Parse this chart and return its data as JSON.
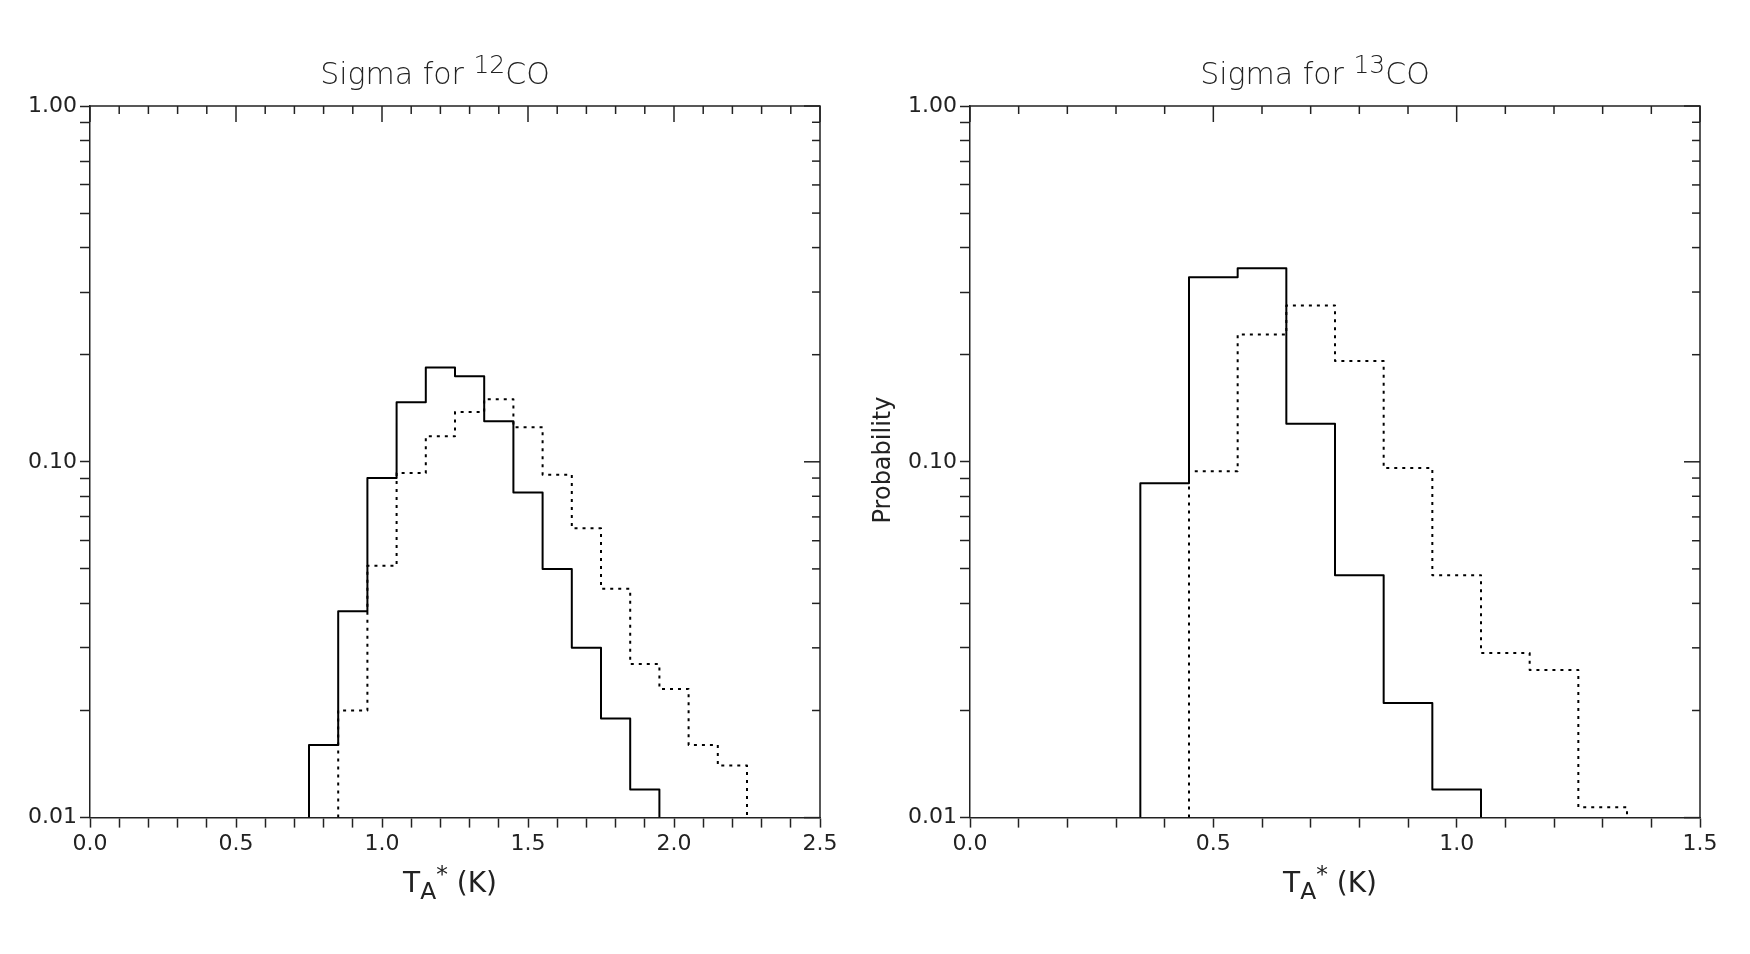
{
  "chart_data": [
    {
      "type": "step",
      "title": "Sigma for $^{12}$CO",
      "xlabel": "T$_{A}$$^{*}$ (K)",
      "log": "y",
      "xlim": [
        0,
        2.5
      ],
      "xticks": [
        {
          "value": 0,
          "label": "0.0"
        },
        {
          "value": 0.1,
          "label": null
        },
        {
          "value": 0.2,
          "label": null
        },
        {
          "value": 0.3,
          "label": null
        },
        {
          "value": 0.4,
          "label": null
        },
        {
          "value": 0.5,
          "label": "0.5"
        },
        {
          "value": 0.6,
          "label": null
        },
        {
          "value": 0.7,
          "label": null
        },
        {
          "value": 0.8,
          "label": null
        },
        {
          "value": 0.9,
          "label": null
        },
        {
          "value": 1,
          "label": "1.0"
        },
        {
          "value": 1.1,
          "label": null
        },
        {
          "value": 1.2,
          "label": null
        },
        {
          "value": 1.3,
          "label": null
        },
        {
          "value": 1.4,
          "label": null
        },
        {
          "value": 1.5,
          "label": "1.5"
        },
        {
          "value": 1.6,
          "label": null
        },
        {
          "value": 1.7,
          "label": null
        },
        {
          "value": 1.8,
          "label": null
        },
        {
          "value": 1.9,
          "label": null
        },
        {
          "value": 2,
          "label": "2.0"
        },
        {
          "value": 2.1,
          "label": null
        },
        {
          "value": 2.2,
          "label": null
        },
        {
          "value": 2.3,
          "label": null
        },
        {
          "value": 2.4,
          "label": null
        },
        {
          "value": 2.5,
          "label": "2.5"
        }
      ],
      "ylim": [
        0.01,
        1
      ],
      "yticks": [
        {
          "value": 0.01,
          "label": "0.01"
        },
        {
          "value": 0.02,
          "label": null
        },
        {
          "value": 0.03,
          "label": null
        },
        {
          "value": 0.04,
          "label": null
        },
        {
          "value": 0.05,
          "label": null
        },
        {
          "value": 0.06,
          "label": null
        },
        {
          "value": 0.07,
          "label": null
        },
        {
          "value": 0.08,
          "label": null
        },
        {
          "value": 0.09,
          "label": null
        },
        {
          "value": 0.1,
          "label": "0.10"
        },
        {
          "value": 0.2,
          "label": null
        },
        {
          "value": 0.3,
          "label": null
        },
        {
          "value": 0.4,
          "label": null
        },
        {
          "value": 0.5,
          "label": null
        },
        {
          "value": 0.6,
          "label": null
        },
        {
          "value": 0.7,
          "label": null
        },
        {
          "value": 0.8,
          "label": null
        },
        {
          "value": 0.9,
          "label": null
        },
        {
          "value": 1,
          "label": "1.00"
        }
      ],
      "series": [
        {
          "color": "#000000",
          "line_style": "solid",
          "x": [
            0.75,
            0.75,
            0.85,
            0.95,
            1.05,
            1.15,
            1.25,
            1.35,
            1.45,
            1.55,
            1.65,
            1.75,
            1.85,
            1.95
          ],
          "values": [
            0.01,
            0.016,
            0.038,
            0.09,
            0.147,
            0.184,
            0.174,
            0.13,
            0.082,
            0.05,
            0.03,
            0.019,
            0.012,
            0.01
          ]
        },
        {
          "color": "#000000",
          "line_style": "dotted",
          "x": [
            0.85,
            0.85,
            0.95,
            1.05,
            1.15,
            1.25,
            1.35,
            1.45,
            1.55,
            1.65,
            1.75,
            1.85,
            1.95,
            2.05,
            2.15,
            2.25
          ],
          "values": [
            0.01,
            0.02,
            0.051,
            0.093,
            0.118,
            0.138,
            0.15,
            0.125,
            0.092,
            0.065,
            0.044,
            0.027,
            0.023,
            0.016,
            0.014,
            0.01
          ]
        }
      ]
    },
    {
      "type": "step",
      "title": "Sigma for $^{13}$CO",
      "xlabel": "T$_{A}$$^{*}$ (K)",
      "ylabel": "Probability",
      "log": "y",
      "xlim": [
        0,
        1.5
      ],
      "xticks": [
        {
          "value": 0,
          "label": "0.0"
        },
        {
          "value": 0.1,
          "label": null
        },
        {
          "value": 0.2,
          "label": null
        },
        {
          "value": 0.3,
          "label": null
        },
        {
          "value": 0.4,
          "label": null
        },
        {
          "value": 0.5,
          "label": "0.5"
        },
        {
          "value": 0.6,
          "label": null
        },
        {
          "value": 0.7,
          "label": null
        },
        {
          "value": 0.8,
          "label": null
        },
        {
          "value": 0.9,
          "label": null
        },
        {
          "value": 1,
          "label": "1.0"
        },
        {
          "value": 1.1,
          "label": null
        },
        {
          "value": 1.2,
          "label": null
        },
        {
          "value": 1.3,
          "label": null
        },
        {
          "value": 1.4,
          "label": null
        },
        {
          "value": 1.5,
          "label": "1.5"
        }
      ],
      "ylim": [
        0.01,
        1
      ],
      "yticks": [
        {
          "value": 0.01,
          "label": "0.01"
        },
        {
          "value": 0.02,
          "label": null
        },
        {
          "value": 0.03,
          "label": null
        },
        {
          "value": 0.04,
          "label": null
        },
        {
          "value": 0.05,
          "label": null
        },
        {
          "value": 0.06,
          "label": null
        },
        {
          "value": 0.07,
          "label": null
        },
        {
          "value": 0.08,
          "label": null
        },
        {
          "value": 0.09,
          "label": null
        },
        {
          "value": 0.1,
          "label": "0.10"
        },
        {
          "value": 0.2,
          "label": null
        },
        {
          "value": 0.3,
          "label": null
        },
        {
          "value": 0.4,
          "label": null
        },
        {
          "value": 0.5,
          "label": null
        },
        {
          "value": 0.6,
          "label": null
        },
        {
          "value": 0.7,
          "label": null
        },
        {
          "value": 0.8,
          "label": null
        },
        {
          "value": 0.9,
          "label": null
        },
        {
          "value": 1,
          "label": "1.00"
        }
      ],
      "series": [
        {
          "color": "#000000",
          "line_style": "solid",
          "x": [
            0.35,
            0.35,
            0.45,
            0.55,
            0.65,
            0.75,
            0.85,
            0.95,
            1.05
          ],
          "values": [
            0.01,
            0.087,
            0.33,
            0.35,
            0.128,
            0.048,
            0.021,
            0.012,
            0.01
          ]
        },
        {
          "color": "#000000",
          "line_style": "dotted",
          "x": [
            0.45,
            0.45,
            0.55,
            0.65,
            0.75,
            0.85,
            0.95,
            1.05,
            1.15,
            1.25,
            1.35
          ],
          "values": [
            0.01,
            0.094,
            0.228,
            0.275,
            0.192,
            0.096,
            0.048,
            0.029,
            0.026,
            0.0107,
            0.01
          ]
        }
      ]
    }
  ]
}
